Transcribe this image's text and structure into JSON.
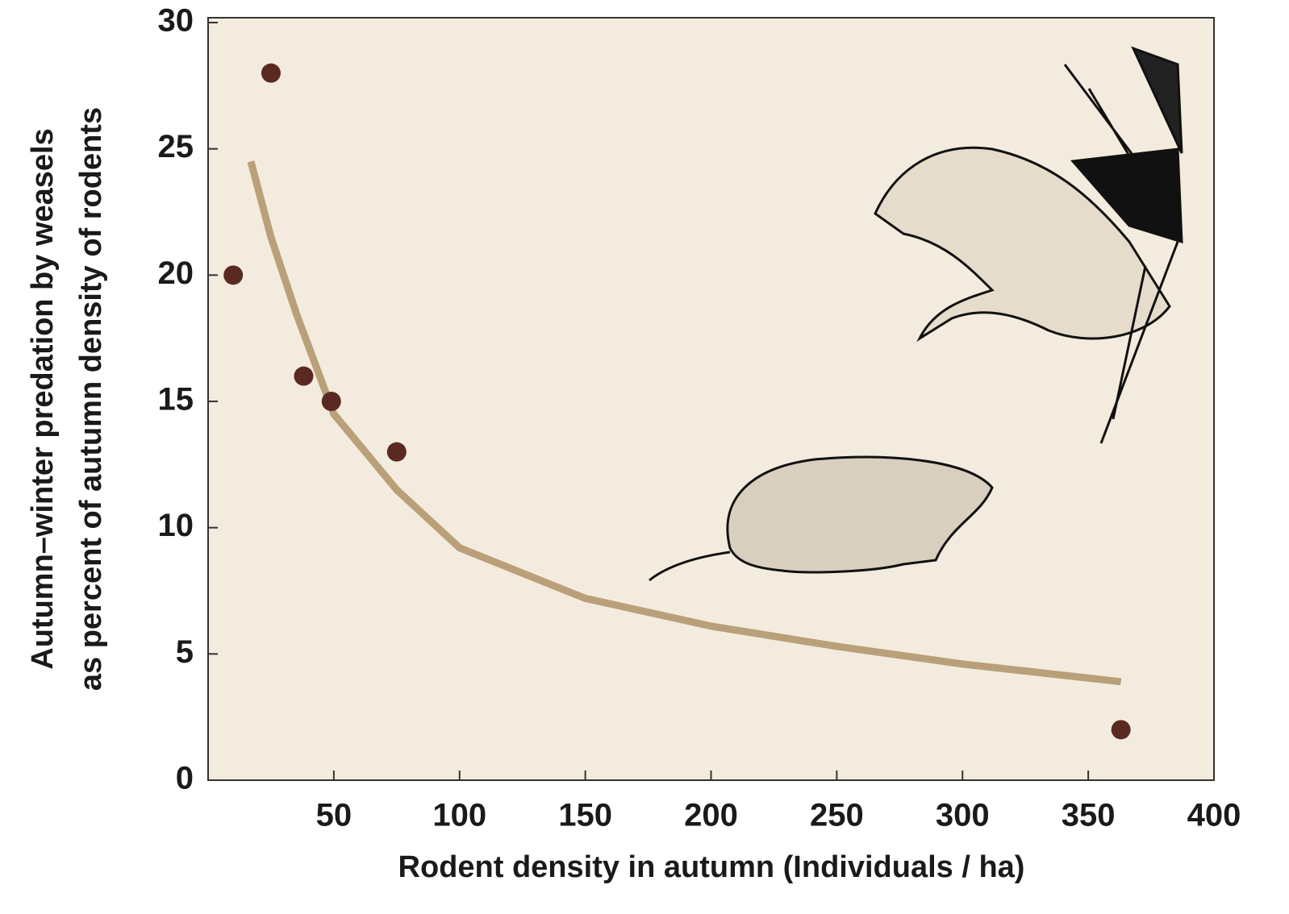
{
  "chart_data": {
    "type": "scatter",
    "xlabel": "Rodent density in autumn (Individuals / ha)",
    "ylabel": [
      "Autumn–winter predation by weasels",
      "as percent of autumn density of rodents"
    ],
    "xlim": [
      0,
      400
    ],
    "xticks": [
      50,
      100,
      150,
      200,
      250,
      300,
      350,
      400
    ],
    "ylim": [
      0,
      30
    ],
    "yticks": [
      0,
      5,
      10,
      15,
      20,
      25,
      30
    ],
    "series": [
      {
        "type": "scatter",
        "color": "#5a2a22",
        "x": [
          10,
          25,
          38,
          49,
          75,
          363
        ],
        "values": [
          20,
          28,
          16,
          15,
          13,
          2
        ]
      },
      {
        "type": "line",
        "color": "#b9a07a",
        "x": [
          17,
          25,
          35,
          50,
          75,
          100,
          150,
          200,
          250,
          300,
          363
        ],
        "values": [
          24.5,
          21.5,
          18.5,
          14.5,
          11.5,
          9.2,
          7.2,
          6.1,
          5.3,
          4.6,
          3.9
        ]
      }
    ]
  }
}
